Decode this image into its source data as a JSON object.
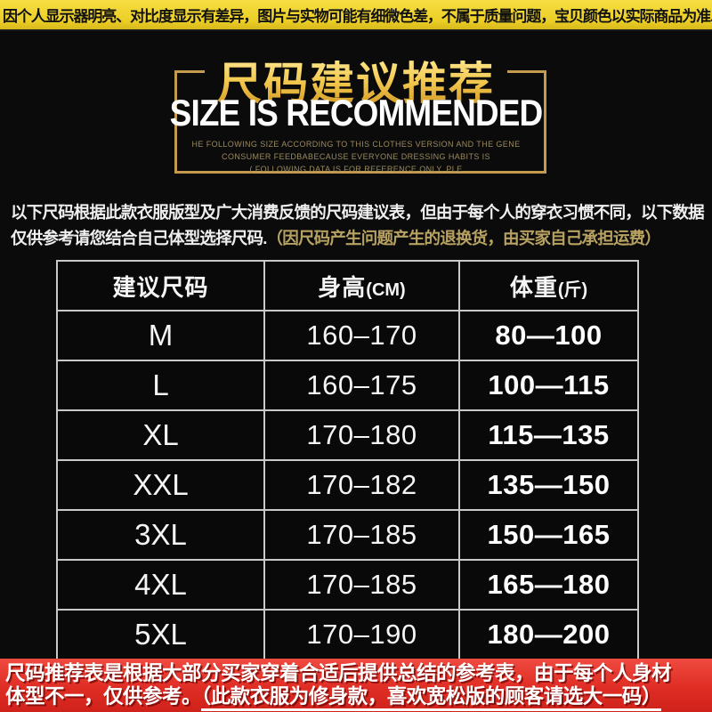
{
  "top_banner": {
    "text": "因个人显示器明亮、对比度显示有差异，图片与实物可能有细微色差，不属于质量问题，宝贝颜色以实际商品为准."
  },
  "header": {
    "title_cn": "尺码建议推荐",
    "title_en": "SIZE IS RECOMMENDED",
    "subtitle_lines": {
      "l1": "HE FOLLOWING SIZE ACCORDING TO THIS CLOTHES VERSION AND THE GENE",
      "l2": "CONSUMER FEEDBABECAUSE EVERYONE DRESSING HABITS IS",
      "l3": "( FOLLOWING DATA IS FOR REFERENCE ONLY, PLE"
    }
  },
  "description": {
    "line1": "以下尺码根据此款衣服版型及广大消费反馈的尺码建议表，但由于每个人的穿衣习惯不同，以下数据",
    "line2_white": "仅供参考请您结合自己体型选择尺码.",
    "line2_gold": "（因尺码产生问题产生的退换货，由买家自己承担运费）"
  },
  "size_table": {
    "headers": [
      {
        "label": "建议尺码",
        "unit": ""
      },
      {
        "label": "身高",
        "unit": "(CM)"
      },
      {
        "label": "体重",
        "unit": "(斤)"
      }
    ],
    "rows": [
      {
        "size": "M",
        "height": "160–170",
        "weight": "80—100"
      },
      {
        "size": "L",
        "height": "160–175",
        "weight": "100—115"
      },
      {
        "size": "XL",
        "height": "170–180",
        "weight": "115—135"
      },
      {
        "size": "XXL",
        "height": "170–182",
        "weight": "135—150"
      },
      {
        "size": "3XL",
        "height": "170–185",
        "weight": "150—165"
      },
      {
        "size": "4XL",
        "height": "170–185",
        "weight": "165—180"
      },
      {
        "size": "5XL",
        "height": "170–190",
        "weight": "180—200"
      }
    ]
  },
  "footer_banner": {
    "line1": "尺码推荐表是根据大部分买家穿着合适后提供总结的参考表，由于每个人身材",
    "line2_plain": "体型不一，仅供参考。",
    "line2_underlined": "（此款衣服为修身款，喜欢宽松版的顾客请选大一码）"
  },
  "colors": {
    "top_banner_yellow": "#eccf27",
    "background_black": "#0b0b0b",
    "title_gold": "#e9bc3f",
    "frame_gold": "#c49b4e",
    "table_border": "#c9c9c9",
    "footer_red": "#df2d24",
    "text_white": "#ffffff"
  }
}
